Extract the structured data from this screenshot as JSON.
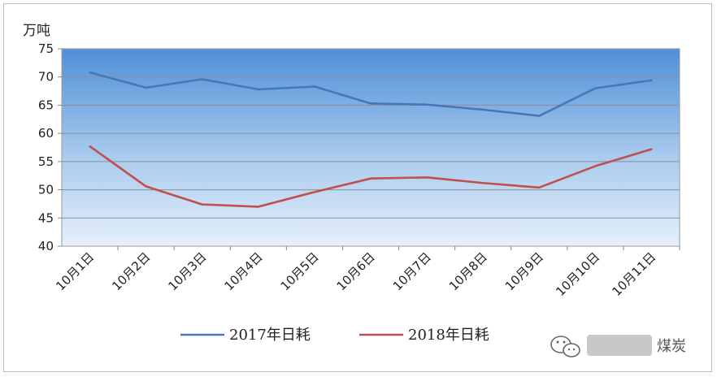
{
  "chart_data": {
    "type": "line",
    "ylabel": "万吨",
    "ylim": [
      40,
      75
    ],
    "yticks": [
      40,
      45,
      50,
      55,
      60,
      65,
      70,
      75
    ],
    "categories": [
      "10月1日",
      "10月2日",
      "10月3日",
      "10月4日",
      "10月5日",
      "10月6日",
      "10月7日",
      "10月8日",
      "10月9日",
      "10月10日",
      "10月11日"
    ],
    "series": [
      {
        "name": "2017年日耗",
        "color": "#4a76b8",
        "values": [
          70.8,
          68.1,
          69.6,
          67.8,
          68.3,
          65.3,
          65.1,
          64.2,
          63.1,
          68.0,
          69.4
        ]
      },
      {
        "name": "2018年日耗",
        "color": "#c0504d",
        "values": [
          57.7,
          50.6,
          47.4,
          47.0,
          49.6,
          52.0,
          52.2,
          51.2,
          50.4,
          54.2,
          57.2
        ]
      }
    ],
    "grid": true,
    "legend_position": "bottom"
  },
  "watermark": "煤炭"
}
